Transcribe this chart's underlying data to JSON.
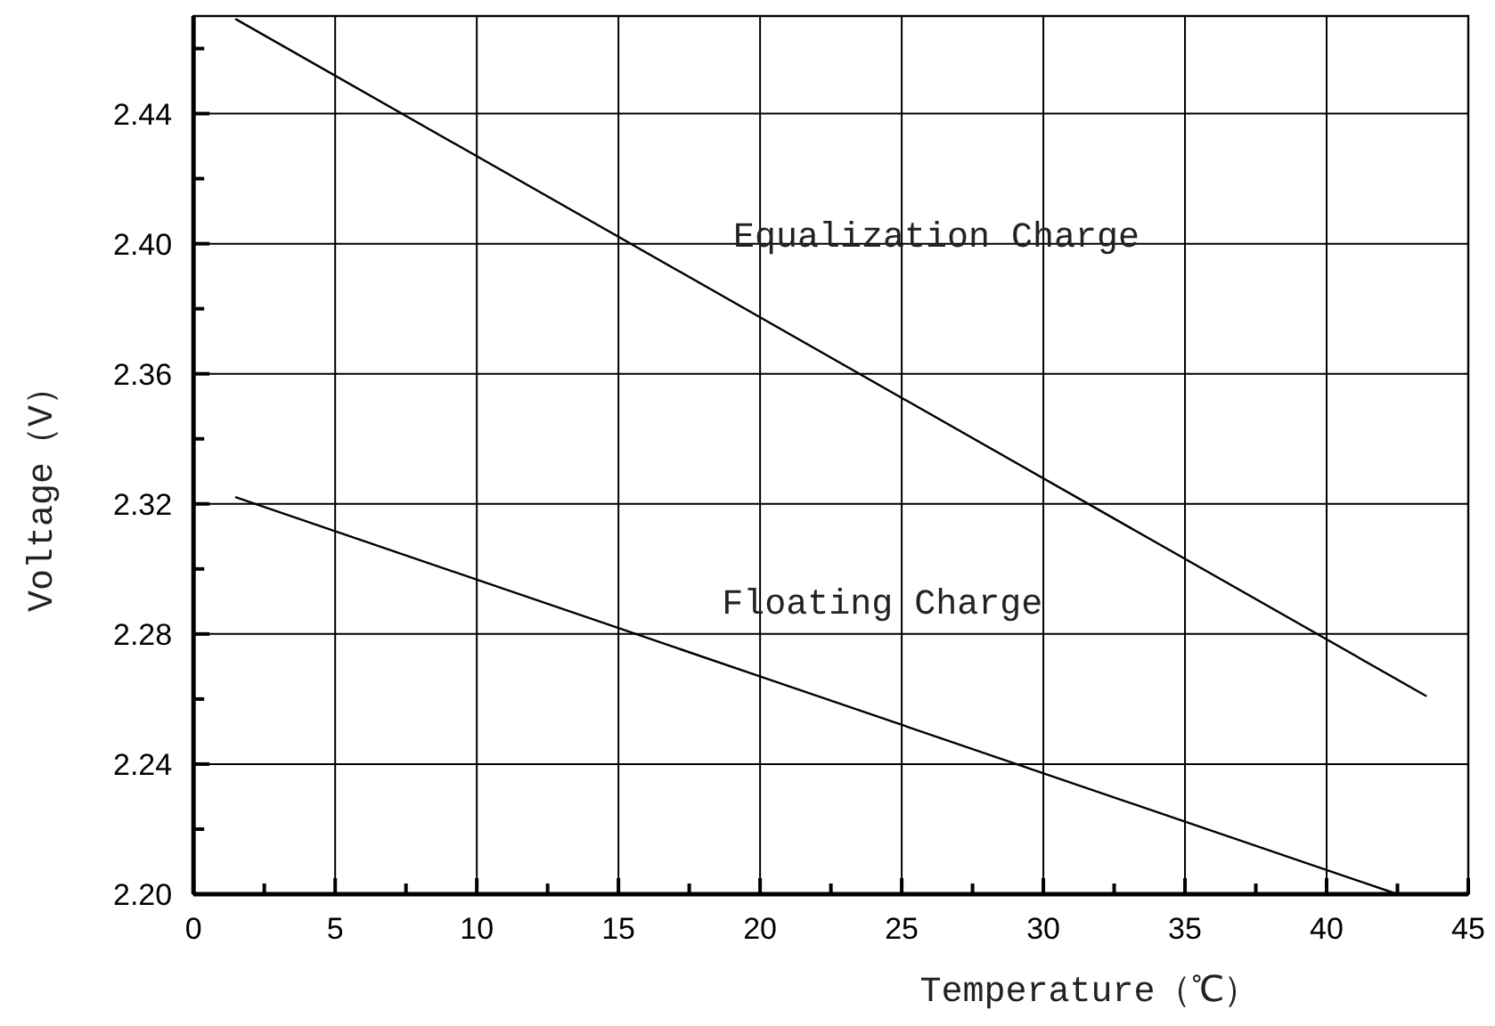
{
  "chart_data": {
    "type": "line",
    "xlabel": "Temperature（℃）",
    "ylabel": "Voltage（V）",
    "xlim": [
      0,
      45
    ],
    "ylim": [
      2.2,
      2.47
    ],
    "xticks": [
      0,
      {
        "value": 2.5,
        "label": null
      },
      5,
      {
        "value": 7.5,
        "label": null
      },
      10,
      {
        "value": 12.5,
        "label": null
      },
      15,
      {
        "value": 17.5,
        "label": null
      },
      20,
      {
        "value": 22.5,
        "label": null
      },
      25,
      {
        "value": 27.5,
        "label": null
      },
      30,
      {
        "value": 32.5,
        "label": null
      },
      35,
      {
        "value": 37.5,
        "label": null
      },
      40,
      {
        "value": 42.5,
        "label": null
      },
      45
    ],
    "yticks": [
      {
        "value": 2.2,
        "label": "2.20"
      },
      {
        "value": 2.22,
        "label": null
      },
      {
        "value": 2.24,
        "label": "2.24"
      },
      {
        "value": 2.26,
        "label": null
      },
      {
        "value": 2.28,
        "label": "2.28"
      },
      {
        "value": 2.3,
        "label": null
      },
      {
        "value": 2.32,
        "label": "2.32"
      },
      {
        "value": 2.34,
        "label": null
      },
      {
        "value": 2.36,
        "label": "2.36"
      },
      {
        "value": 2.38,
        "label": null
      },
      {
        "value": 2.4,
        "label": "2.40"
      },
      {
        "value": 2.42,
        "label": null
      },
      {
        "value": 2.44,
        "label": "2.44"
      },
      {
        "value": 2.46,
        "label": null
      }
    ],
    "grid": true,
    "line_style": "solid",
    "series": [
      {
        "name": "Equalization Charge",
        "color": "#000000",
        "x": [
          1.5,
          43.5
        ],
        "values": [
          2.469,
          2.261
        ]
      },
      {
        "name": "Floating Charge",
        "color": "#000000",
        "x": [
          1.5,
          42.5
        ],
        "values": [
          2.322,
          2.2
        ]
      }
    ]
  }
}
